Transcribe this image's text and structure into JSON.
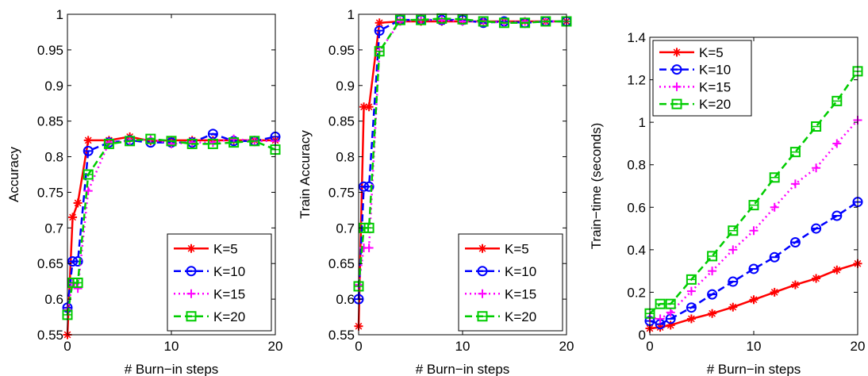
{
  "chart_data": [
    {
      "type": "line",
      "xlabel": "# Burn−in steps",
      "ylabel": "Accuracy",
      "xlim": [
        0,
        20
      ],
      "ylim": [
        0.55,
        1
      ],
      "xticks": [
        "0",
        "10",
        "20"
      ],
      "yticks": [
        "0.55",
        "0.6",
        "0.65",
        "0.7",
        "0.75",
        "0.8",
        "0.85",
        "0.9",
        "0.95",
        "1"
      ],
      "grid": false,
      "legend_position": "bottom-right",
      "x": [
        0,
        0.5,
        1,
        2,
        4,
        6,
        8,
        10,
        12,
        14,
        16,
        18,
        20
      ],
      "series": [
        {
          "name": "K=5",
          "color": "#ff0000",
          "dash": "solid",
          "marker": "star",
          "values": [
            0.55,
            0.715,
            0.735,
            0.823,
            0.823,
            0.828,
            0.822,
            0.823,
            0.823,
            0.823,
            0.823,
            0.823,
            0.823
          ]
        },
        {
          "name": "K=10",
          "color": "#0000ff",
          "dash": "dashed",
          "marker": "circle",
          "values": [
            0.588,
            0.653,
            0.653,
            0.808,
            0.82,
            0.823,
            0.82,
            0.82,
            0.82,
            0.832,
            0.822,
            0.822,
            0.828
          ]
        },
        {
          "name": "K=15",
          "color": "#ff00ff",
          "dash": "dotted",
          "marker": "plus",
          "values": [
            0.585,
            0.622,
            0.615,
            0.752,
            0.82,
            0.822,
            0.825,
            0.818,
            0.82,
            0.82,
            0.825,
            0.822,
            0.822
          ]
        },
        {
          "name": "K=20",
          "color": "#00cc00",
          "dash": "dashed",
          "marker": "square",
          "values": [
            0.578,
            0.623,
            0.623,
            0.775,
            0.818,
            0.822,
            0.825,
            0.822,
            0.818,
            0.818,
            0.82,
            0.822,
            0.81
          ]
        }
      ]
    },
    {
      "type": "line",
      "xlabel": "# Burn−in steps",
      "ylabel": "Train Accuracy",
      "xlim": [
        0,
        20
      ],
      "ylim": [
        0.55,
        1
      ],
      "xticks": [
        "0",
        "10",
        "20"
      ],
      "yticks": [
        "0.55",
        "0.6",
        "0.65",
        "0.7",
        "0.75",
        "0.8",
        "0.85",
        "0.9",
        "0.95",
        "1"
      ],
      "grid": false,
      "legend_position": "bottom-right",
      "x": [
        0,
        0.5,
        1,
        2,
        4,
        6,
        8,
        10,
        12,
        14,
        16,
        18,
        20
      ],
      "series": [
        {
          "name": "K=5",
          "color": "#ff0000",
          "dash": "solid",
          "marker": "star",
          "values": [
            0.562,
            0.87,
            0.87,
            0.988,
            0.99,
            0.99,
            0.99,
            0.99,
            0.99,
            0.99,
            0.99,
            0.99,
            0.99
          ]
        },
        {
          "name": "K=10",
          "color": "#0000ff",
          "dash": "dashed",
          "marker": "circle",
          "values": [
            0.6,
            0.758,
            0.758,
            0.977,
            0.992,
            0.992,
            0.992,
            0.992,
            0.988,
            0.99,
            0.988,
            0.99,
            0.99
          ]
        },
        {
          "name": "K=15",
          "color": "#ff00ff",
          "dash": "dotted",
          "marker": "plus",
          "values": [
            0.62,
            0.672,
            0.672,
            0.948,
            0.99,
            0.992,
            0.992,
            0.99,
            0.99,
            0.988,
            0.99,
            0.99,
            0.99
          ]
        },
        {
          "name": "K=20",
          "color": "#00cc00",
          "dash": "dashed",
          "marker": "square",
          "values": [
            0.618,
            0.7,
            0.7,
            0.948,
            0.992,
            0.992,
            0.994,
            0.993,
            0.99,
            0.988,
            0.988,
            0.99,
            0.99
          ]
        }
      ]
    },
    {
      "type": "line",
      "xlabel": "# Burn−in steps",
      "ylabel": "Train−time (seconds)",
      "xlim": [
        0,
        20
      ],
      "ylim": [
        0,
        1.4
      ],
      "xticks": [
        "0",
        "10",
        "20"
      ],
      "yticks": [
        "0",
        "0.2",
        "0.4",
        "0.6",
        "0.8",
        "1",
        "1.2",
        "1.4"
      ],
      "grid": false,
      "legend_position": "top-left",
      "x": [
        0,
        1,
        2,
        4,
        6,
        8,
        10,
        12,
        14,
        16,
        18,
        20
      ],
      "series": [
        {
          "name": "K=5",
          "color": "#ff0000",
          "dash": "solid",
          "marker": "star",
          "values": [
            0.03,
            0.035,
            0.045,
            0.075,
            0.1,
            0.13,
            0.165,
            0.2,
            0.235,
            0.265,
            0.305,
            0.335
          ]
        },
        {
          "name": "K=10",
          "color": "#0000ff",
          "dash": "dashed",
          "marker": "circle",
          "values": [
            0.065,
            0.05,
            0.075,
            0.128,
            0.19,
            0.25,
            0.31,
            0.365,
            0.435,
            0.5,
            0.56,
            0.625
          ]
        },
        {
          "name": "K=15",
          "color": "#ff00ff",
          "dash": "dotted",
          "marker": "plus",
          "values": [
            0.08,
            0.075,
            0.105,
            0.205,
            0.3,
            0.4,
            0.49,
            0.6,
            0.71,
            0.785,
            0.9,
            1.01
          ]
        },
        {
          "name": "K=20",
          "color": "#00cc00",
          "dash": "dashed",
          "marker": "square",
          "values": [
            0.1,
            0.145,
            0.145,
            0.26,
            0.37,
            0.49,
            0.61,
            0.74,
            0.86,
            0.98,
            1.1,
            1.24
          ]
        }
      ]
    }
  ]
}
